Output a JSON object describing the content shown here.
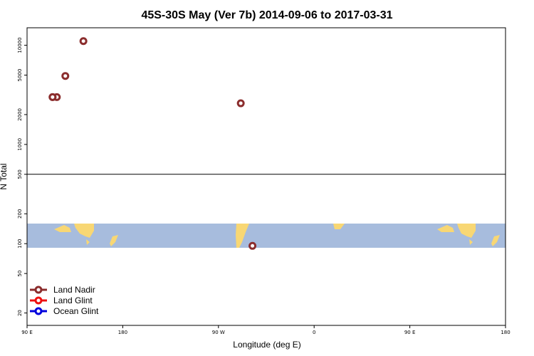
{
  "chart_data": {
    "type": "scatter",
    "title": "45S-30S May (Ver 7b)   2014-09-06 to 2017-03-31",
    "xlabel": "Longitude (deg E)",
    "ylabel": "N Total",
    "y_scale": "log",
    "ylim": [
      15,
      15000
    ],
    "xlim": [
      90,
      540
    ],
    "x_ticks": [
      {
        "value": 90,
        "label": "90 E"
      },
      {
        "value": 180,
        "label": "180"
      },
      {
        "value": 270,
        "label": "90 W"
      },
      {
        "value": 360,
        "label": "0"
      },
      {
        "value": 450,
        "label": "90 E"
      },
      {
        "value": 540,
        "label": "180"
      }
    ],
    "y_ticks": [
      {
        "value": 20,
        "label": "20"
      },
      {
        "value": 50,
        "label": "50"
      },
      {
        "value": 100,
        "label": "100"
      },
      {
        "value": 200,
        "label": "200"
      },
      {
        "value": 500,
        "label": "500"
      },
      {
        "value": 1000,
        "label": "1000"
      },
      {
        "value": 2000,
        "label": "2000"
      },
      {
        "value": 5000,
        "label": "5000"
      },
      {
        "value": 10000,
        "label": "10000"
      }
    ],
    "reference_line_y": 500,
    "map_strip": {
      "lat_range": "45S-30S",
      "color": "#a7bcdd",
      "land_color": "#f8d774"
    },
    "legend_position": "bottom-left",
    "series": [
      {
        "name": "Land Nadir",
        "color": "#8b2d2d",
        "points": [
          {
            "x": 118,
            "y": 3000
          },
          {
            "x": 126,
            "y": 4900
          },
          {
            "x": 143,
            "y": 11000
          },
          {
            "x": 291,
            "y": 2600
          },
          {
            "x": 302,
            "y": 95
          },
          {
            "x": 114,
            "y": 3000
          },
          {
            "x": 114,
            "y": 3000
          }
        ]
      }
    ]
  },
  "legend": {
    "land_nadir": "Land Nadir",
    "land_glint": "Land Glint",
    "ocean_glint": "Ocean Glint"
  }
}
